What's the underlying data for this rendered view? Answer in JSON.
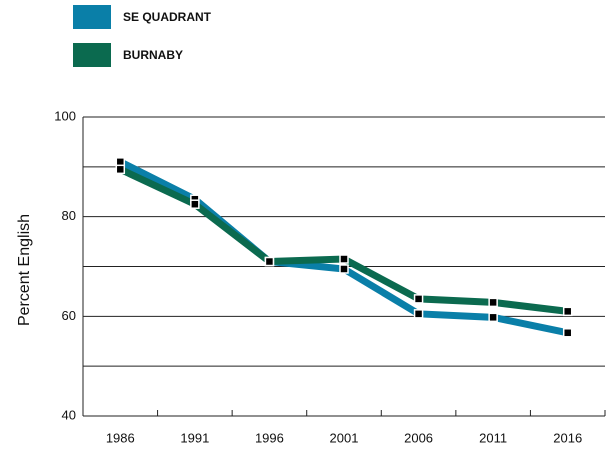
{
  "chart_data": {
    "type": "line",
    "categories": [
      "1986",
      "1991",
      "1996",
      "2001",
      "2006",
      "2011",
      "2016"
    ],
    "series": [
      {
        "name": "SE QUADRANT",
        "color": "#0a7fa8",
        "values": [
          91,
          83.5,
          71,
          69.5,
          60.5,
          59.8,
          56.7
        ]
      },
      {
        "name": "BURNABY",
        "color": "#0b6a4f",
        "values": [
          89.5,
          82.5,
          71,
          71.5,
          63.5,
          62.8,
          61
        ]
      }
    ],
    "ylabel": "Percent English",
    "ylim": [
      40,
      100
    ],
    "yticks": [
      40,
      60,
      80,
      100
    ],
    "minor_gridlines": [
      50,
      70,
      90
    ],
    "grid": true,
    "legend": "top-left"
  }
}
